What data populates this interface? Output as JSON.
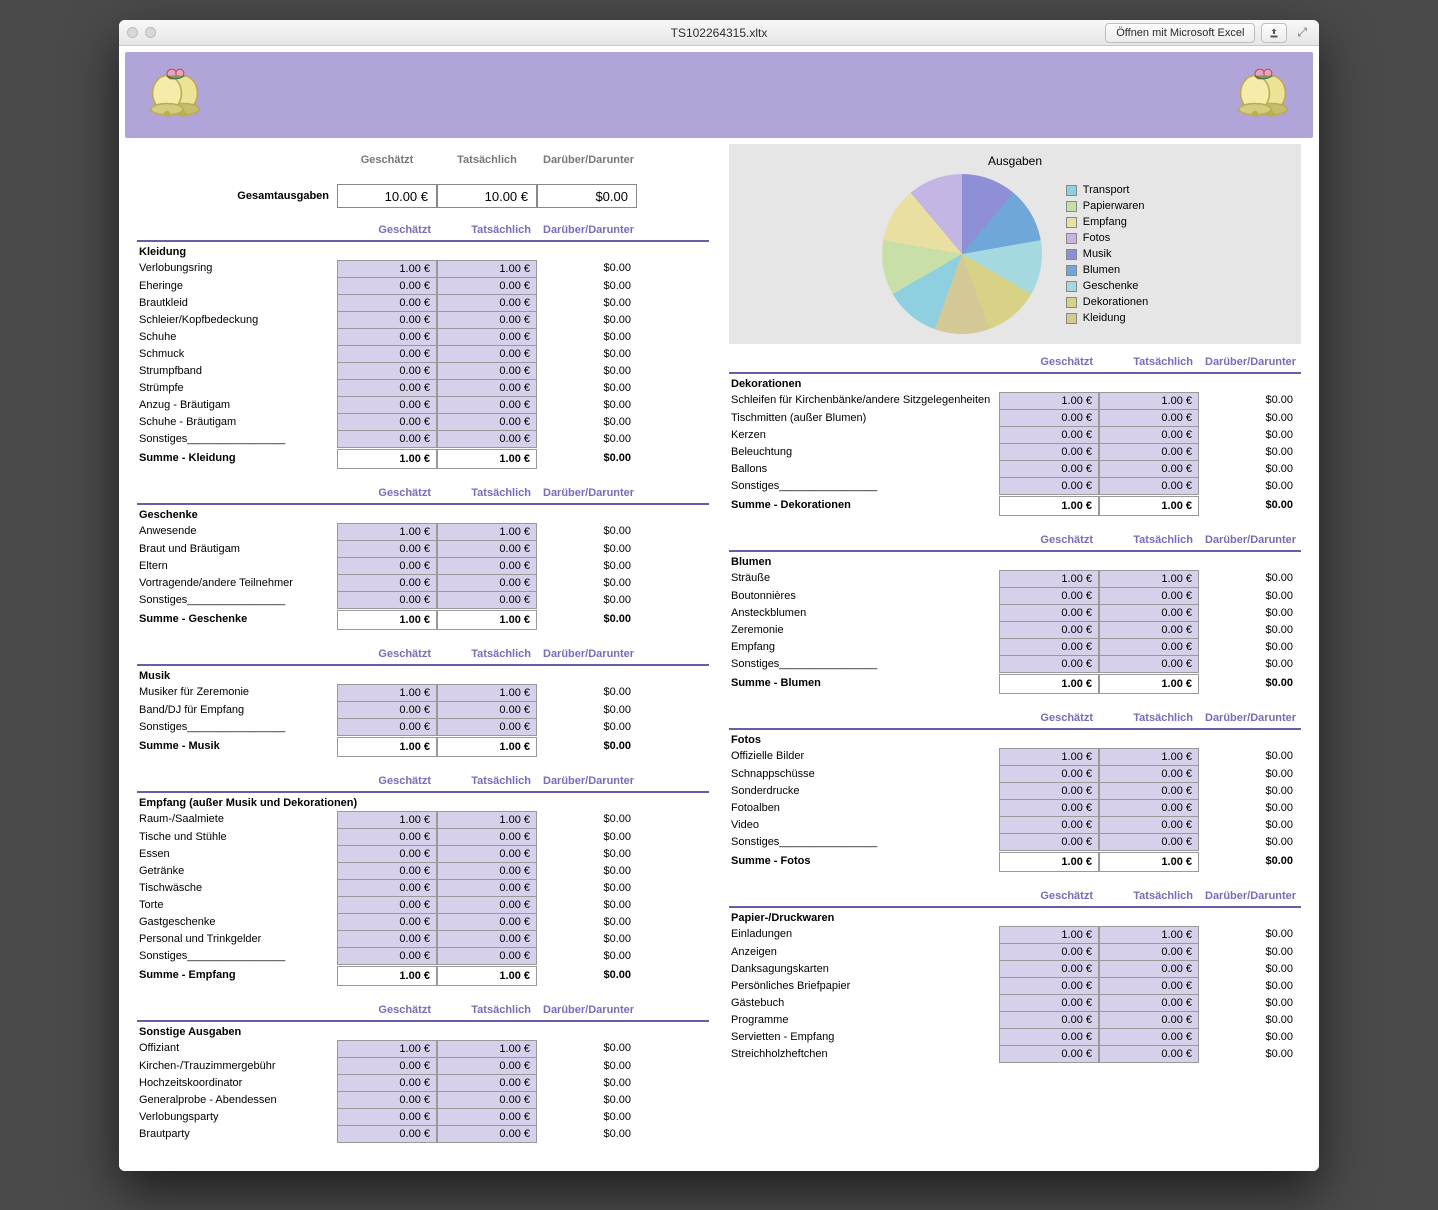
{
  "window": {
    "title": "TS102264315.xltx",
    "open_button": "Öffnen mit Microsoft Excel"
  },
  "colors": {
    "banner": "#b0a4d8",
    "section_line": "#6b5ca6",
    "cell_fill": "#d6d0ea",
    "header_text": "#7c6bb8",
    "chart_bg": "#e6e6e6"
  },
  "totals": {
    "col_headers": [
      "Geschätzt",
      "Tatsächlich",
      "Darüber/Darunter"
    ],
    "label": "Gesamtausgaben",
    "est": "10.00 €",
    "act": "10.00 €",
    "diff": "$0.00"
  },
  "col_headers": [
    "Geschätzt",
    "Tatsächlich",
    "Darüber/Darunter"
  ],
  "chart": {
    "title": "Ausgaben",
    "legend": [
      "Transport",
      "Papierwaren",
      "Empfang",
      "Fotos",
      "Musik",
      "Blumen",
      "Geschenke",
      "Dekorationen",
      "Kleidung"
    ],
    "colors": [
      "#8fd0e0",
      "#c8e0a8",
      "#e9dfa0",
      "#c3b6e2",
      "#8f8fd8",
      "#6fa8d8",
      "#a4d9df",
      "#d7d285",
      "#d2c996"
    ],
    "slices_deg": [
      40,
      40,
      40,
      40,
      40,
      40,
      40,
      40,
      40
    ]
  },
  "left_sections": [
    {
      "title": "Kleidung",
      "rows": [
        [
          "Verlobungsring",
          "1.00 €",
          "1.00 €",
          "$0.00"
        ],
        [
          "Eheringe",
          "0.00 €",
          "0.00 €",
          "$0.00"
        ],
        [
          "Brautkleid",
          "0.00 €",
          "0.00 €",
          "$0.00"
        ],
        [
          "Schleier/Kopfbedeckung",
          "0.00 €",
          "0.00 €",
          "$0.00"
        ],
        [
          "Schuhe",
          "0.00 €",
          "0.00 €",
          "$0.00"
        ],
        [
          "Schmuck",
          "0.00 €",
          "0.00 €",
          "$0.00"
        ],
        [
          "Strumpfband",
          "0.00 €",
          "0.00 €",
          "$0.00"
        ],
        [
          "Strümpfe",
          "0.00 €",
          "0.00 €",
          "$0.00"
        ],
        [
          "Anzug - Bräutigam",
          "0.00 €",
          "0.00 €",
          "$0.00"
        ],
        [
          "Schuhe - Bräutigam",
          "0.00 €",
          "0.00 €",
          "$0.00"
        ],
        [
          "Sonstiges________________",
          "0.00 €",
          "0.00 €",
          "$0.00"
        ]
      ],
      "sum": [
        "Summe - Kleidung",
        "1.00 €",
        "1.00 €",
        "$0.00"
      ]
    },
    {
      "title": "Geschenke",
      "rows": [
        [
          "Anwesende",
          "1.00 €",
          "1.00 €",
          "$0.00"
        ],
        [
          "Braut und Bräutigam",
          "0.00 €",
          "0.00 €",
          "$0.00"
        ],
        [
          "Eltern",
          "0.00 €",
          "0.00 €",
          "$0.00"
        ],
        [
          "Vortragende/andere Teilnehmer",
          "0.00 €",
          "0.00 €",
          "$0.00"
        ],
        [
          "Sonstiges________________",
          "0.00 €",
          "0.00 €",
          "$0.00"
        ]
      ],
      "sum": [
        "Summe - Geschenke",
        "1.00 €",
        "1.00 €",
        "$0.00"
      ]
    },
    {
      "title": "Musik",
      "rows": [
        [
          "Musiker für Zeremonie",
          "1.00 €",
          "1.00 €",
          "$0.00"
        ],
        [
          "Band/DJ für Empfang",
          "0.00 €",
          "0.00 €",
          "$0.00"
        ],
        [
          "Sonstiges________________",
          "0.00 €",
          "0.00 €",
          "$0.00"
        ]
      ],
      "sum": [
        "Summe - Musik",
        "1.00 €",
        "1.00 €",
        "$0.00"
      ]
    },
    {
      "title": "Empfang (außer Musik und Dekorationen)",
      "rows": [
        [
          "Raum-/Saalmiete",
          "1.00 €",
          "1.00 €",
          "$0.00"
        ],
        [
          "Tische und Stühle",
          "0.00 €",
          "0.00 €",
          "$0.00"
        ],
        [
          "Essen",
          "0.00 €",
          "0.00 €",
          "$0.00"
        ],
        [
          "Getränke",
          "0.00 €",
          "0.00 €",
          "$0.00"
        ],
        [
          "Tischwäsche",
          "0.00 €",
          "0.00 €",
          "$0.00"
        ],
        [
          "Torte",
          "0.00 €",
          "0.00 €",
          "$0.00"
        ],
        [
          "Gastgeschenke",
          "0.00 €",
          "0.00 €",
          "$0.00"
        ],
        [
          "Personal und Trinkgelder",
          "0.00 €",
          "0.00 €",
          "$0.00"
        ],
        [
          "Sonstiges________________",
          "0.00 €",
          "0.00 €",
          "$0.00"
        ]
      ],
      "sum": [
        "Summe - Empfang",
        "1.00 €",
        "1.00 €",
        "$0.00"
      ]
    },
    {
      "title": "Sonstige Ausgaben",
      "rows": [
        [
          "Offiziant",
          "1.00 €",
          "1.00 €",
          "$0.00"
        ],
        [
          "Kirchen-/Trauzimmergebühr",
          "0.00 €",
          "0.00 €",
          "$0.00"
        ],
        [
          "Hochzeitskoordinator",
          "0.00 €",
          "0.00 €",
          "$0.00"
        ],
        [
          "Generalprobe - Abendessen",
          "0.00 €",
          "0.00 €",
          "$0.00"
        ],
        [
          "Verlobungsparty",
          "0.00 €",
          "0.00 €",
          "$0.00"
        ],
        [
          "Brautparty",
          "0.00 €",
          "0.00 €",
          "$0.00"
        ]
      ],
      "sum": null
    }
  ],
  "right_sections": [
    {
      "title": "Dekorationen",
      "rows": [
        [
          "Schleifen für Kirchenbänke/andere Sitzgelegenheiten",
          "1.00 €",
          "1.00 €",
          "$0.00"
        ],
        [
          "Tischmitten (außer Blumen)",
          "0.00 €",
          "0.00 €",
          "$0.00"
        ],
        [
          "Kerzen",
          "0.00 €",
          "0.00 €",
          "$0.00"
        ],
        [
          "Beleuchtung",
          "0.00 €",
          "0.00 €",
          "$0.00"
        ],
        [
          "Ballons",
          "0.00 €",
          "0.00 €",
          "$0.00"
        ],
        [
          "Sonstiges________________",
          "0.00 €",
          "0.00 €",
          "$0.00"
        ]
      ],
      "sum": [
        "Summe - Dekorationen",
        "1.00 €",
        "1.00 €",
        "$0.00"
      ]
    },
    {
      "title": "Blumen",
      "rows": [
        [
          "Sträuße",
          "1.00 €",
          "1.00 €",
          "$0.00"
        ],
        [
          "Boutonnières",
          "0.00 €",
          "0.00 €",
          "$0.00"
        ],
        [
          "Ansteckblumen",
          "0.00 €",
          "0.00 €",
          "$0.00"
        ],
        [
          "Zeremonie",
          "0.00 €",
          "0.00 €",
          "$0.00"
        ],
        [
          "Empfang",
          "0.00 €",
          "0.00 €",
          "$0.00"
        ],
        [
          "Sonstiges________________",
          "0.00 €",
          "0.00 €",
          "$0.00"
        ]
      ],
      "sum": [
        "Summe - Blumen",
        "1.00 €",
        "1.00 €",
        "$0.00"
      ]
    },
    {
      "title": "Fotos",
      "rows": [
        [
          "Offizielle Bilder",
          "1.00 €",
          "1.00 €",
          "$0.00"
        ],
        [
          "Schnappschüsse",
          "0.00 €",
          "0.00 €",
          "$0.00"
        ],
        [
          "Sonderdrucke",
          "0.00 €",
          "0.00 €",
          "$0.00"
        ],
        [
          "Fotoalben",
          "0.00 €",
          "0.00 €",
          "$0.00"
        ],
        [
          "Video",
          "0.00 €",
          "0.00 €",
          "$0.00"
        ],
        [
          "Sonstiges________________",
          "0.00 €",
          "0.00 €",
          "$0.00"
        ]
      ],
      "sum": [
        "Summe - Fotos",
        "1.00 €",
        "1.00 €",
        "$0.00"
      ]
    },
    {
      "title": "Papier-/Druckwaren",
      "rows": [
        [
          "Einladungen",
          "1.00 €",
          "1.00 €",
          "$0.00"
        ],
        [
          "Anzeigen",
          "0.00 €",
          "0.00 €",
          "$0.00"
        ],
        [
          "Danksagungskarten",
          "0.00 €",
          "0.00 €",
          "$0.00"
        ],
        [
          "Persönliches Briefpapier",
          "0.00 €",
          "0.00 €",
          "$0.00"
        ],
        [
          "Gästebuch",
          "0.00 €",
          "0.00 €",
          "$0.00"
        ],
        [
          "Programme",
          "0.00 €",
          "0.00 €",
          "$0.00"
        ],
        [
          "Servietten - Empfang",
          "0.00 €",
          "0.00 €",
          "$0.00"
        ],
        [
          "Streichholzheftchen",
          "0.00 €",
          "0.00 €",
          "$0.00"
        ]
      ],
      "sum": null
    }
  ]
}
